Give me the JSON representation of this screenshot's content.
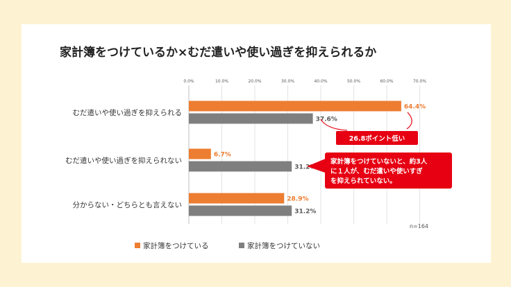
{
  "colors": {
    "background": "#FDF3D3",
    "series_doing": "#ED7D31",
    "series_not_doing": "#7F7F7F",
    "callout": "#E60012"
  },
  "chart_data": {
    "type": "bar",
    "orientation": "horizontal",
    "title": "家計簿をつけているか×むだ遣いや使い過ぎを抑えられるか",
    "categories": [
      "むだ遣いや使い過ぎを抑えられる",
      "むだ遣いや使い過ぎを抑えられない",
      "分からない・どちらとも言えない"
    ],
    "series": [
      {
        "name": "家計簿をつけている",
        "values": [
          64.4,
          6.7,
          28.9
        ],
        "labels": [
          "64.4%",
          "6.7%",
          "28.9%"
        ]
      },
      {
        "name": "家計簿をつけていない",
        "values": [
          37.6,
          31.2,
          31.2
        ],
        "labels": [
          "37.6%",
          "31.2%",
          "31.2%"
        ]
      }
    ],
    "xlim": [
      0,
      70
    ],
    "xticks": [
      "0.0%",
      "10.0%",
      "20.0%",
      "30.0%",
      "40.0%",
      "50.0%",
      "60.0%",
      "70.0%"
    ],
    "axis_position": "top",
    "grid": true,
    "legend_position": "bottom-left",
    "note": "n=164",
    "annotations": [
      {
        "text": "26.8ポイント低い"
      },
      {
        "lines": [
          "家計簿をつけていないと、約3人",
          "に１人が、むだ遣いや使いすぎ",
          "を抑えられていない。"
        ]
      }
    ]
  }
}
